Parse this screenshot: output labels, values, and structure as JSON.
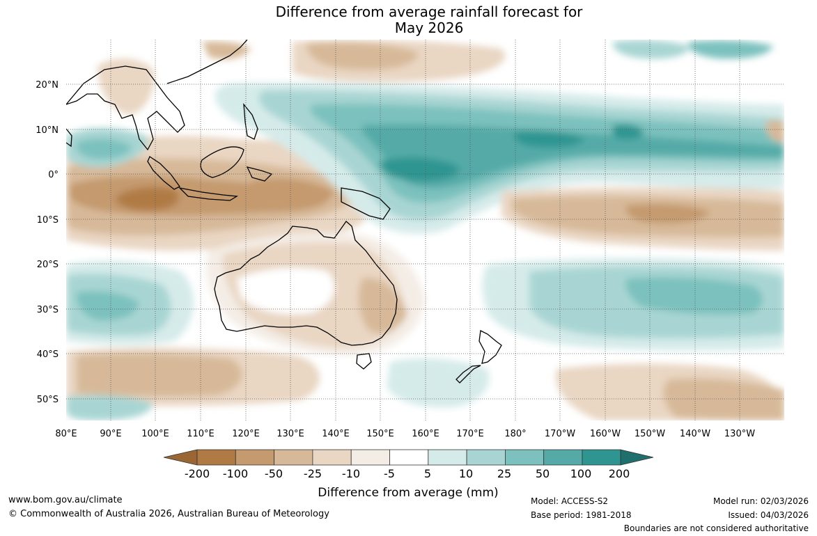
{
  "title": {
    "line1": "Difference from average rainfall forecast for",
    "line2": "May 2026"
  },
  "map": {
    "lat_labels": [
      "20°N",
      "10°N",
      "0°",
      "10°S",
      "20°S",
      "30°S",
      "40°S",
      "50°S"
    ],
    "lon_labels": [
      "80°E",
      "90°E",
      "100°E",
      "110°E",
      "120°E",
      "130°E",
      "140°E",
      "150°E",
      "160°E",
      "170°E",
      "180°",
      "170°W",
      "160°W",
      "150°W",
      "140°W",
      "130°W"
    ]
  },
  "colorbar": {
    "labels": [
      "-200",
      "-100",
      "-50",
      "-25",
      "-10",
      "-5",
      "5",
      "10",
      "25",
      "50",
      "100",
      "200"
    ],
    "colors": [
      "#9a6633",
      "#b07a45",
      "#c49a6e",
      "#d7b999",
      "#e9d6c3",
      "#f4ede6",
      "#ffffff",
      "#d5ebea",
      "#a8d5d3",
      "#7cc1be",
      "#55aaa7",
      "#2f9591",
      "#1f6f6c"
    ],
    "label": "Difference from average (mm)"
  },
  "footer": {
    "website": "www.bom.gov.au/climate",
    "copyright": "© Commonwealth of Australia 2026, Australian Bureau of Meteorology",
    "model": "Model: ACCESS-S2",
    "base_period": "Base period: 1981-2018",
    "model_run": "Model run: 02/03/2026",
    "issued": "Issued: 04/03/2026",
    "disclaimer": "Boundaries are not considered authoritative"
  }
}
